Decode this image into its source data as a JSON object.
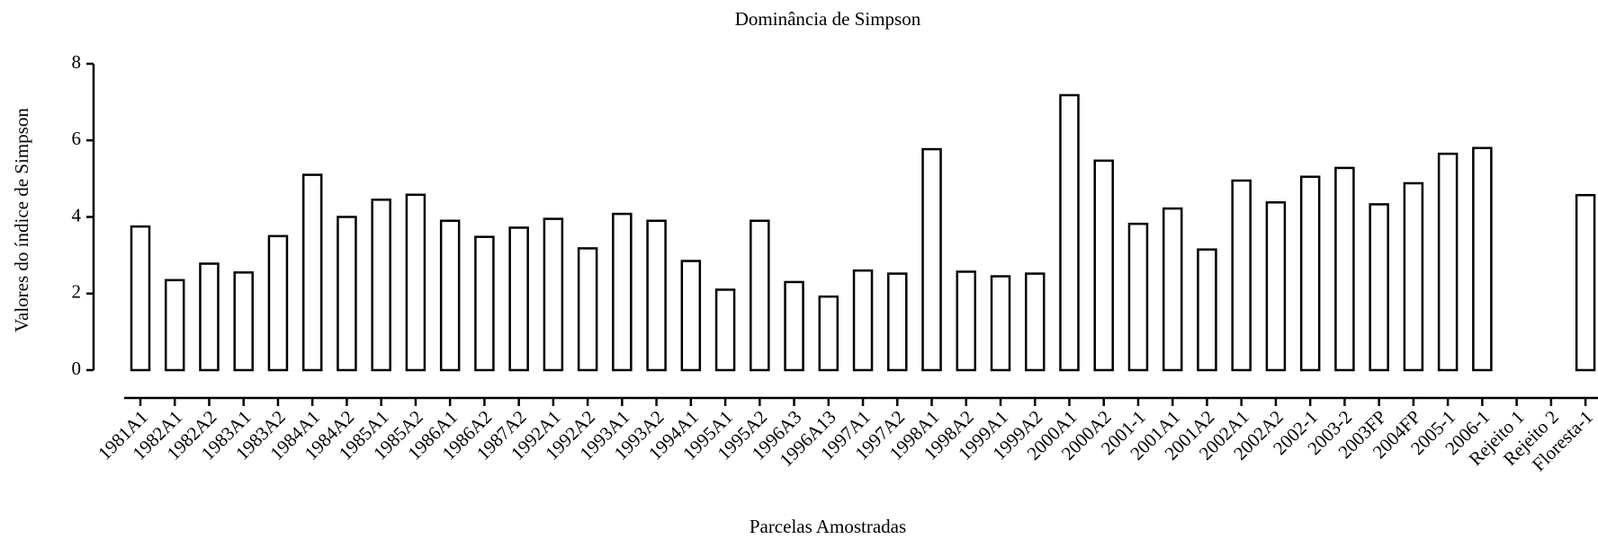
{
  "chart_data": {
    "type": "bar",
    "title": "Dominância de Simpson",
    "x_label": "Parcelas Amostradas",
    "y_label": "Valores do índice de Simpson",
    "categories": [
      "1981A1",
      "1982A1",
      "1982A2",
      "1983A1",
      "1983A2",
      "1984A1",
      "1984A2",
      "1985A1",
      "1985A2",
      "1986A1",
      "1986A2",
      "1987A2",
      "1992A1",
      "1992A2",
      "1993A1",
      "1993A2",
      "1994A1",
      "1995A1",
      "1995A2",
      "1996A3",
      "1996A13",
      "1997A1",
      "1997A2",
      "1998A1",
      "1998A2",
      "1999A1",
      "1999A2",
      "2000A1",
      "2000A2",
      "2001-1",
      "2001A1",
      "2001A2",
      "2002A1",
      "2002A2",
      "2002-1",
      "2003-2",
      "2003FP",
      "2004FP",
      "2005-1",
      "2006-1",
      "Rejeito 1",
      "Rejeito 2",
      "Floresta-1"
    ],
    "values": [
      3.75,
      2.35,
      2.78,
      2.55,
      3.5,
      5.1,
      4.0,
      4.45,
      4.58,
      3.9,
      3.48,
      3.72,
      3.95,
      3.18,
      4.08,
      3.9,
      2.85,
      2.1,
      3.9,
      2.3,
      1.92,
      2.6,
      2.52,
      5.77,
      2.57,
      2.45,
      2.52,
      7.18,
      5.47,
      3.82,
      4.22,
      3.15,
      4.95,
      4.38,
      5.05,
      5.28,
      4.33,
      4.88,
      5.65,
      5.8,
      null,
      null,
      4.57
    ],
    "color": "#ffffff",
    "ylim": [
      0,
      8
    ],
    "yticks": [
      0,
      2,
      4,
      6,
      8
    ],
    "grid": false
  }
}
